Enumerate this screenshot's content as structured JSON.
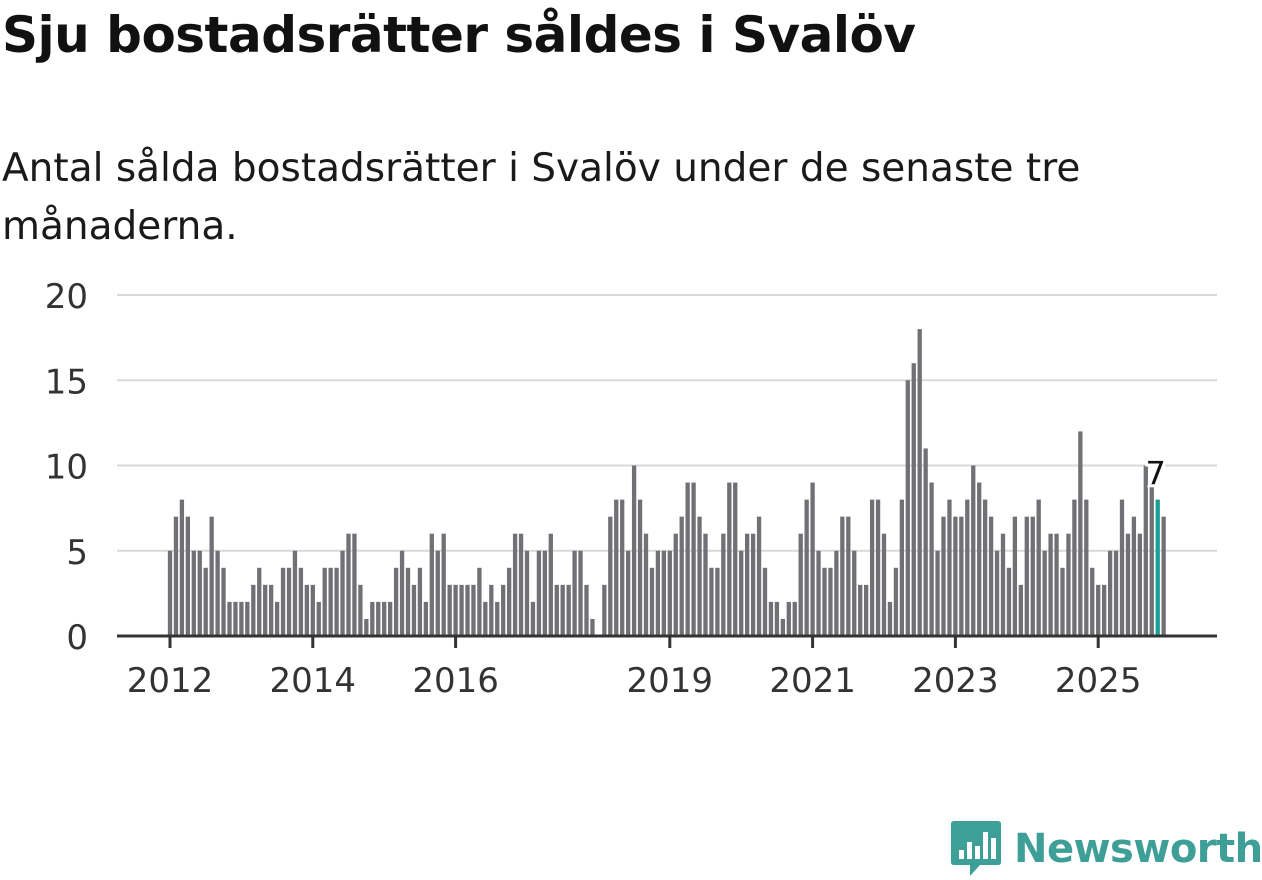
{
  "title": "Sju bostadsrätter såldes i Svalöv",
  "subtitle": "Antal sålda bostadsrätter i Svalöv under de senaste tre månaderna.",
  "brand": {
    "name": "Newsworthy",
    "color": "#3d9f97",
    "icon": "newsworthy-logo-icon"
  },
  "chart_data": {
    "type": "bar",
    "title": "Sju bostadsrätter såldes i Svalöv",
    "xlabel": "",
    "ylabel": "",
    "ylim": [
      0,
      20
    ],
    "yticks": [
      0,
      5,
      10,
      15,
      20
    ],
    "x_tick_labels": [
      {
        "label": "2012",
        "index": 0
      },
      {
        "label": "2014",
        "index": 24
      },
      {
        "label": "2016",
        "index": 48
      },
      {
        "label": "2019",
        "index": 84
      },
      {
        "label": "2021",
        "index": 108
      },
      {
        "label": "2023",
        "index": 132
      },
      {
        "label": "2025",
        "index": 156
      }
    ],
    "bar_color": "#717075",
    "highlight_color": "#1a9e96",
    "highlight_index": 166,
    "highlight_label": "7",
    "values": [
      5,
      7,
      8,
      7,
      5,
      5,
      4,
      7,
      5,
      4,
      2,
      2,
      2,
      2,
      3,
      4,
      3,
      3,
      2,
      4,
      4,
      5,
      4,
      3,
      3,
      2,
      4,
      4,
      4,
      5,
      6,
      6,
      3,
      1,
      2,
      2,
      2,
      2,
      4,
      5,
      4,
      3,
      4,
      2,
      6,
      5,
      6,
      3,
      3,
      3,
      3,
      3,
      4,
      2,
      3,
      2,
      3,
      4,
      6,
      6,
      5,
      2,
      5,
      5,
      6,
      3,
      3,
      3,
      5,
      5,
      3,
      1,
      0,
      3,
      7,
      8,
      8,
      5,
      10,
      8,
      6,
      4,
      5,
      5,
      5,
      6,
      7,
      9,
      9,
      7,
      6,
      4,
      4,
      6,
      9,
      9,
      5,
      6,
      6,
      7,
      4,
      2,
      2,
      1,
      2,
      2,
      6,
      8,
      9,
      5,
      4,
      4,
      5,
      7,
      7,
      5,
      3,
      3,
      8,
      8,
      6,
      2,
      4,
      8,
      15,
      16,
      18,
      11,
      9,
      5,
      7,
      8,
      7,
      7,
      8,
      10,
      9,
      8,
      7,
      5,
      6,
      4,
      7,
      3,
      7,
      7,
      8,
      5,
      6,
      6,
      4,
      6,
      8,
      12,
      8,
      4,
      3,
      3,
      5,
      5,
      8,
      6,
      7,
      6,
      10,
      9,
      8,
      7
    ]
  }
}
